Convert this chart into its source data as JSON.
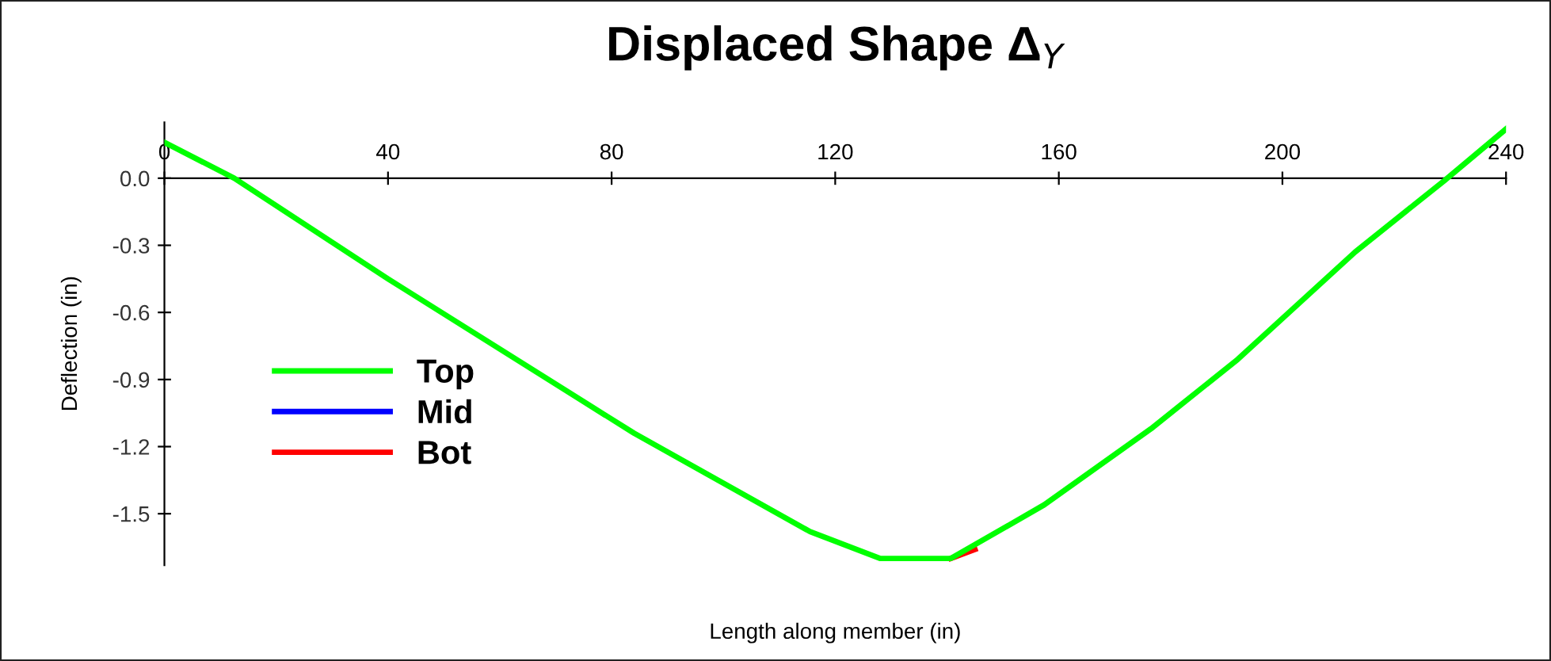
{
  "chart_data": {
    "type": "line",
    "title": "Displaced Shape Δ$_{Y}$",
    "xlabel": "Length along member (in)",
    "ylabel": "Deflection (in)",
    "x": [
      0,
      12.5,
      40,
      84,
      115.5,
      128,
      140.7,
      157.4,
      176.5,
      192,
      213,
      229,
      240
    ],
    "series": [
      {
        "name": "Top",
        "color": "#00ff00",
        "values": [
          0.16,
          0,
          -0.45,
          -1.14,
          -1.58,
          -1.7,
          -1.7,
          -1.46,
          -1.12,
          -0.81,
          -0.33,
          -0.01,
          0.22
        ]
      },
      {
        "name": "Mid",
        "color": "#0000ff",
        "values": [
          null,
          null,
          null,
          null,
          null,
          null,
          null,
          null,
          null,
          null,
          null,
          null,
          null
        ]
      },
      {
        "name": "Bot",
        "color": "#ff0000",
        "x": [
          140.7,
          145
        ],
        "values": [
          -1.7,
          -1.66
        ]
      }
    ],
    "xlim": [
      0,
      240
    ],
    "ylim": [
      -1.73,
      0.25
    ],
    "xticks": [
      0,
      40,
      80,
      120,
      160,
      200,
      240
    ],
    "yticks": [
      {
        "value": 0,
        "label": "0.0"
      },
      {
        "value": -0.3,
        "label": "-0.3"
      },
      {
        "value": -0.6,
        "label": "-0.6"
      },
      {
        "value": -0.9,
        "label": "-0.9"
      },
      {
        "value": -1.2,
        "label": "-1.2"
      },
      {
        "value": -1.5,
        "label": "-1.5"
      }
    ],
    "grid": false,
    "legend": "left",
    "marker": "none",
    "line_style": "solid"
  }
}
